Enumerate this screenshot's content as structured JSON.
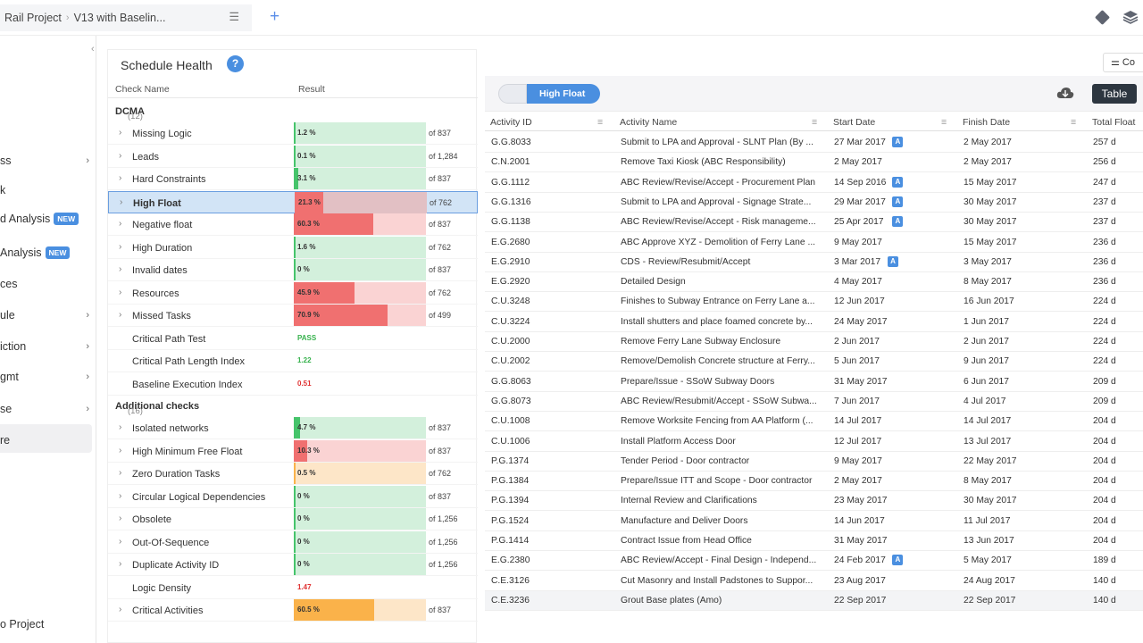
{
  "topbar": {
    "project": "Rail Project",
    "schedule": "V13 with Baselin..."
  },
  "sidebar": [
    {
      "label": "ss",
      "has_chevron": true
    },
    {
      "label": "k",
      "has_chevron": false
    },
    {
      "label": "d Analysis",
      "badge": "NEW"
    },
    {
      "label": "Analysis",
      "badge": "NEW"
    },
    {
      "label": "ces",
      "has_chevron": false
    },
    {
      "label": "ule",
      "has_chevron": true
    },
    {
      "label": "iction",
      "has_chevron": true
    },
    {
      "label": "gmt",
      "has_chevron": true
    },
    {
      "label": "se",
      "has_chevron": true
    },
    {
      "label": "re",
      "has_chevron": false
    }
  ],
  "sidebar_bottom": "o Project",
  "panel": {
    "title": "Schedule Health",
    "col_name": "Check Name",
    "col_result": "Result"
  },
  "groups": [
    {
      "name": "DCMA",
      "count": "(12)",
      "rows": [
        {
          "name": "Missing Logic",
          "pct": "1.2 %",
          "fill": 1.2,
          "status": "good",
          "of": "of 837"
        },
        {
          "name": "Leads",
          "pct": "0.1 %",
          "fill": 0.1,
          "status": "good",
          "of": "of 1,284"
        },
        {
          "name": "Hard Constraints",
          "pct": "3.1 %",
          "fill": 3.1,
          "status": "good",
          "of": "of 837"
        },
        {
          "name": "High Float",
          "pct": "21.3 %",
          "fill": 21.3,
          "status": "bad",
          "of": "of 762",
          "selected": true
        },
        {
          "name": "Negative float",
          "pct": "60.3 %",
          "fill": 60.3,
          "status": "bad",
          "of": "of 837"
        },
        {
          "name": "High Duration",
          "pct": "1.6 %",
          "fill": 1.6,
          "status": "good",
          "of": "of 762"
        },
        {
          "name": "Invalid dates",
          "pct": "0 %",
          "fill": 0,
          "status": "good",
          "of": "of 837"
        },
        {
          "name": "Resources",
          "pct": "45.9 %",
          "fill": 45.9,
          "status": "bad",
          "of": "of 762"
        },
        {
          "name": "Missed Tasks",
          "pct": "70.9 %",
          "fill": 70.9,
          "status": "bad",
          "of": "of 499"
        },
        {
          "name": "Critical Path Test",
          "value": "PASS",
          "value_color": "#37b24d",
          "no_chevron": true
        },
        {
          "name": "Critical Path Length Index",
          "value": "1.22",
          "value_color": "#37b24d",
          "no_chevron": true
        },
        {
          "name": "Baseline Execution Index",
          "value": "0.51",
          "value_color": "#e03131",
          "no_chevron": true
        }
      ]
    },
    {
      "name": "Additional checks",
      "count": "(16)",
      "rows": [
        {
          "name": "Isolated networks",
          "pct": "4.7 %",
          "fill": 4.7,
          "status": "good",
          "of": "of 837"
        },
        {
          "name": "High Minimum Free Float",
          "pct": "10.3 %",
          "fill": 10.3,
          "status": "bad",
          "of": "of 837"
        },
        {
          "name": "Zero Duration Tasks",
          "pct": "0.5 %",
          "fill": 0.5,
          "status": "warn",
          "of": "of 762"
        },
        {
          "name": "Circular Logical Dependencies",
          "pct": "0 %",
          "fill": 0,
          "status": "good",
          "of": "of 837"
        },
        {
          "name": "Obsolete",
          "pct": "0 %",
          "fill": 0,
          "status": "good",
          "of": "of 1,256"
        },
        {
          "name": "Out-Of-Sequence",
          "pct": "0 %",
          "fill": 0,
          "status": "good",
          "of": "of 1,256"
        },
        {
          "name": "Duplicate Activity ID",
          "pct": "0 %",
          "fill": 0,
          "status": "good",
          "of": "of 1,256"
        },
        {
          "name": "Logic Density",
          "value": "1.47",
          "value_color": "#e03131",
          "no_chevron": true
        },
        {
          "name": "Critical Activities",
          "pct": "60.5 %",
          "fill": 60.5,
          "status": "warn",
          "of": "of 837"
        }
      ]
    }
  ],
  "status_colors": {
    "good": {
      "bg": "#d3f0dc",
      "fill": "#46c46b"
    },
    "bad": {
      "bg": "#fad3d3",
      "fill": "#f07070"
    },
    "warn": {
      "bg": "#fde6c8",
      "fill": "#fab24a"
    },
    "selected_bg": "#e2c0c4"
  },
  "right": {
    "tag": "High Float",
    "table_btn": "Table",
    "corr_btn": "Co",
    "columns": [
      "Activity ID",
      "Activity Name",
      "Start Date",
      "Finish Date",
      "Total Float"
    ],
    "rows": [
      [
        "G.G.8033",
        "Submit to LPA and Approval - SLNT Plan (By ...",
        "27 Mar 2017",
        true,
        "2 May 2017",
        "257 d"
      ],
      [
        "C.N.2001",
        "Remove Taxi Kiosk (ABC Responsibility)",
        "2 May 2017",
        false,
        "2 May 2017",
        "256 d"
      ],
      [
        "G.G.1112",
        "ABC Review/Revise/Accept - Procurement Plan",
        "14 Sep 2016",
        true,
        "15 May 2017",
        "247 d"
      ],
      [
        "G.G.1316",
        "Submit to LPA and Approval - Signage Strate...",
        "29 Mar 2017",
        true,
        "30 May 2017",
        "237 d"
      ],
      [
        "G.G.1138",
        "ABC Review/Revise/Accept - Risk manageme...",
        "25 Apr 2017",
        true,
        "30 May 2017",
        "237 d"
      ],
      [
        "E.G.2680",
        "ABC Approve XYZ - Demolition of Ferry Lane ...",
        "9 May 2017",
        false,
        "15 May 2017",
        "236 d"
      ],
      [
        "E.G.2910",
        "CDS - Review/Resubmit/Accept",
        "3 Mar 2017",
        true,
        "3 May 2017",
        "236 d"
      ],
      [
        "E.G.2920",
        "Detailed Design",
        "4 May 2017",
        false,
        "8 May 2017",
        "236 d"
      ],
      [
        "C.U.3248",
        "Finishes to Subway Entrance on Ferry Lane a...",
        "12 Jun 2017",
        false,
        "16 Jun 2017",
        "224 d"
      ],
      [
        "C.U.3224",
        "Install shutters and place foamed concrete by...",
        "24 May 2017",
        false,
        "1 Jun 2017",
        "224 d"
      ],
      [
        "C.U.2000",
        "Remove Ferry Lane Subway Enclosure",
        "2 Jun 2017",
        false,
        "2 Jun 2017",
        "224 d"
      ],
      [
        "C.U.2002",
        "Remove/Demolish Concrete structure at Ferry...",
        "5 Jun 2017",
        false,
        "9 Jun 2017",
        "224 d"
      ],
      [
        "G.G.8063",
        "Prepare/Issue - SSoW Subway Doors",
        "31 May 2017",
        false,
        "6 Jun 2017",
        "209 d"
      ],
      [
        "G.G.8073",
        "ABC Review/Resubmit/Accept - SSoW Subwa...",
        "7 Jun 2017",
        false,
        "4 Jul 2017",
        "209 d"
      ],
      [
        "C.U.1008",
        "Remove Worksite Fencing from AA Platform (...",
        "14 Jul 2017",
        false,
        "14 Jul 2017",
        "204 d"
      ],
      [
        "C.U.1006",
        "Install Platform Access Door",
        "12 Jul 2017",
        false,
        "13 Jul 2017",
        "204 d"
      ],
      [
        "P.G.1374",
        "Tender Period - Door contractor",
        "9 May 2017",
        false,
        "22 May 2017",
        "204 d"
      ],
      [
        "P.G.1384",
        "Prepare/Issue ITT and Scope - Door contractor",
        "2 May 2017",
        false,
        "8 May 2017",
        "204 d"
      ],
      [
        "P.G.1394",
        "Internal Review and Clarifications",
        "23 May 2017",
        false,
        "30 May 2017",
        "204 d"
      ],
      [
        "P.G.1524",
        "Manufacture and Deliver Doors",
        "14 Jun 2017",
        false,
        "11 Jul 2017",
        "204 d"
      ],
      [
        "P.G.1414",
        "Contract Issue from Head Office",
        "31 May 2017",
        false,
        "13 Jun 2017",
        "204 d"
      ],
      [
        "E.G.2380",
        "ABC Review/Accept - Final Design - Independ...",
        "24 Feb 2017",
        true,
        "5 May 2017",
        "189 d"
      ],
      [
        "C.E.3126",
        "Cut Masonry and Install Padstones to Suppor...",
        "23 Aug 2017",
        false,
        "24 Aug 2017",
        "140 d"
      ],
      [
        "C.E.3236",
        "Grout Base plates (Amo)",
        "22 Sep 2017",
        false,
        "22 Sep 2017",
        "140 d"
      ]
    ],
    "badge_label": "A"
  }
}
